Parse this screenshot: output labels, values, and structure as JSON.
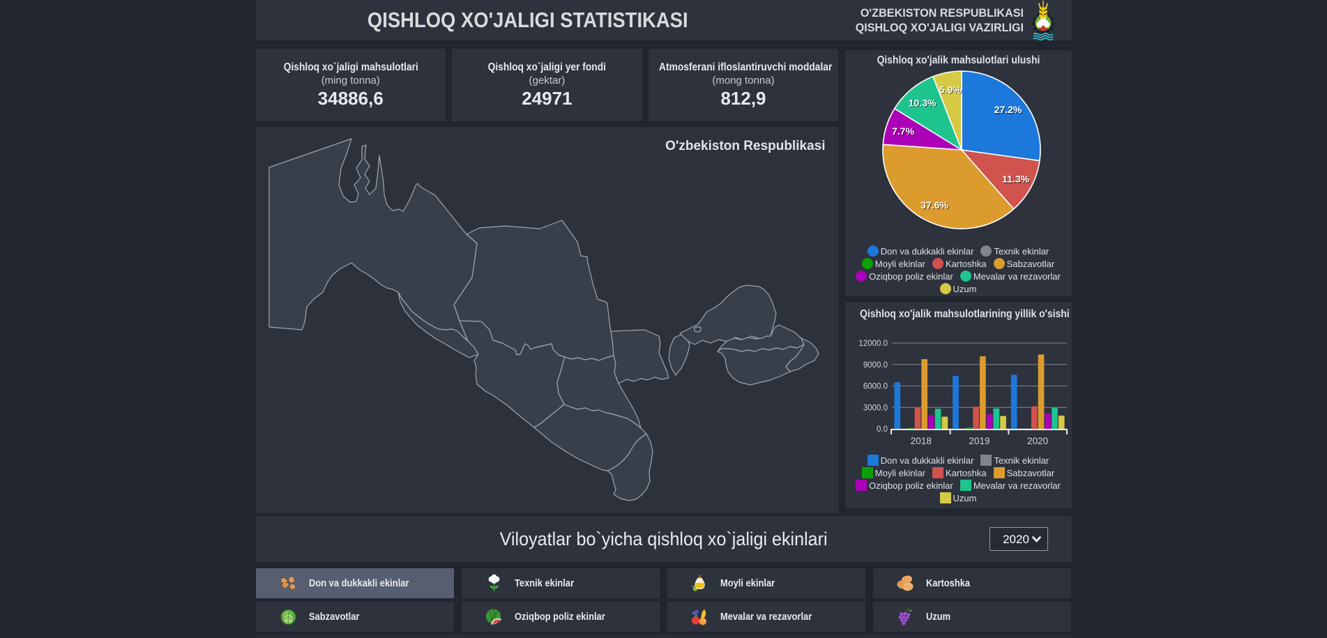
{
  "header": {
    "title": "QISHLOQ XO'JALIGI STATISTIKASI",
    "ministry_line1": "O'ZBEKISTON RESPUBLIKASI",
    "ministry_line2": "QISHLOQ XO'JALIGI VAZIRLIGI",
    "logo_icon": "wheat-cotton-water-emblem"
  },
  "stat_cards": [
    {
      "title": "Qishloq xo`jaligi mahsulotlari",
      "subtitle": "(ming tonna)",
      "value": "34886,6"
    },
    {
      "title": "Qishloq xo`jaligi yer fondi",
      "subtitle": "(gektar)",
      "value": "24971"
    },
    {
      "title": "Atmosferani ifloslantiruvchi moddalar",
      "subtitle": "(mong tonna)",
      "value": "812,9"
    }
  ],
  "map": {
    "label": "O'zbekiston Respublikasi"
  },
  "palette": {
    "blue": "#1d78dc",
    "gray": "#7e8590",
    "green": "#0aa00a",
    "red": "#d0534e",
    "orange": "#dc9b2d",
    "magenta": "#ac00b8",
    "teal": "#1ec48e",
    "yellow": "#d6ca44"
  },
  "chart_data": [
    {
      "type": "pie",
      "title": "Qishloq xo'jalik mahsulotlari ulushi",
      "legend_shape": "circle",
      "series": [
        {
          "name": "Don va dukkakli ekinlar",
          "value": 27.2,
          "color": "#1d78dc",
          "label": "27.2%"
        },
        {
          "name": "Texnik ekinlar",
          "value": 0,
          "color": "#7e8590",
          "label": ""
        },
        {
          "name": "Moyli ekinlar",
          "value": 0,
          "color": "#0aa00a",
          "label": ""
        },
        {
          "name": "Kartoshka",
          "value": 11.3,
          "color": "#d0534e",
          "label": "11.3%"
        },
        {
          "name": "Sabzavotlar",
          "value": 37.6,
          "color": "#dc9b2d",
          "label": "37.6%"
        },
        {
          "name": "Oziqbop poliz ekinlar",
          "value": 7.7,
          "color": "#ac00b8",
          "label": "7.7%"
        },
        {
          "name": "Mevalar va rezavorlar",
          "value": 10.3,
          "color": "#1ec48e",
          "label": "10.3%"
        },
        {
          "name": "Uzum",
          "value": 5.9,
          "color": "#d6ca44",
          "label": "5.9%"
        }
      ]
    },
    {
      "type": "bar",
      "title": "Qishloq xo'jalik mahsulotlarining yillik o'sishi",
      "legend_shape": "square",
      "categories": [
        "2018",
        "2019",
        "2020"
      ],
      "ylim": [
        0,
        12000
      ],
      "yticks": [
        "0.0",
        "3000.0",
        "6000.0",
        "9000.0",
        "12000.0"
      ],
      "series": [
        {
          "name": "Don va dukkakli ekinlar",
          "color": "#1d78dc",
          "values": [
            6500,
            7400,
            7550
          ]
        },
        {
          "name": "Texnik ekinlar",
          "color": "#7e8590",
          "values": [
            0,
            0,
            0
          ]
        },
        {
          "name": "Moyli ekinlar",
          "color": "#0aa00a",
          "values": [
            150,
            200,
            0
          ]
        },
        {
          "name": "Kartoshka",
          "color": "#d0534e",
          "values": [
            2950,
            3100,
            3150
          ]
        },
        {
          "name": "Sabzavotlar",
          "color": "#dc9b2d",
          "values": [
            9750,
            10150,
            10400
          ]
        },
        {
          "name": "Oziqbop poliz ekinlar",
          "color": "#ac00b8",
          "values": [
            1900,
            2050,
            2150
          ]
        },
        {
          "name": "Mevalar va rezavorlar",
          "color": "#1ec48e",
          "values": [
            2800,
            2850,
            2950
          ]
        },
        {
          "name": "Uzum",
          "color": "#d6ca44",
          "values": [
            1700,
            1800,
            1850
          ]
        }
      ]
    }
  ],
  "section": {
    "title": "Viloyatlar bo`yicha qishloq xo`jaligi ekinlari",
    "year_select": {
      "value": "2020",
      "options": [
        "2020"
      ]
    }
  },
  "crop_buttons": [
    {
      "label": "Don va dukkakli ekinlar",
      "icon": "peanuts-icon",
      "selected": true
    },
    {
      "label": "Texnik ekinlar",
      "icon": "cotton-icon",
      "selected": false
    },
    {
      "label": "Moyli ekinlar",
      "icon": "oil-bottle-icon",
      "selected": false
    },
    {
      "label": "Kartoshka",
      "icon": "potato-icon",
      "selected": false
    },
    {
      "label": "Sabzavotlar",
      "icon": "cabbage-icon",
      "selected": false
    },
    {
      "label": "Oziqbop poliz ekinlar",
      "icon": "watermelon-icon",
      "selected": false
    },
    {
      "label": "Mevalar va rezavorlar",
      "icon": "fruits-icon",
      "selected": false
    },
    {
      "label": "Uzum",
      "icon": "grapes-icon",
      "selected": false
    }
  ]
}
